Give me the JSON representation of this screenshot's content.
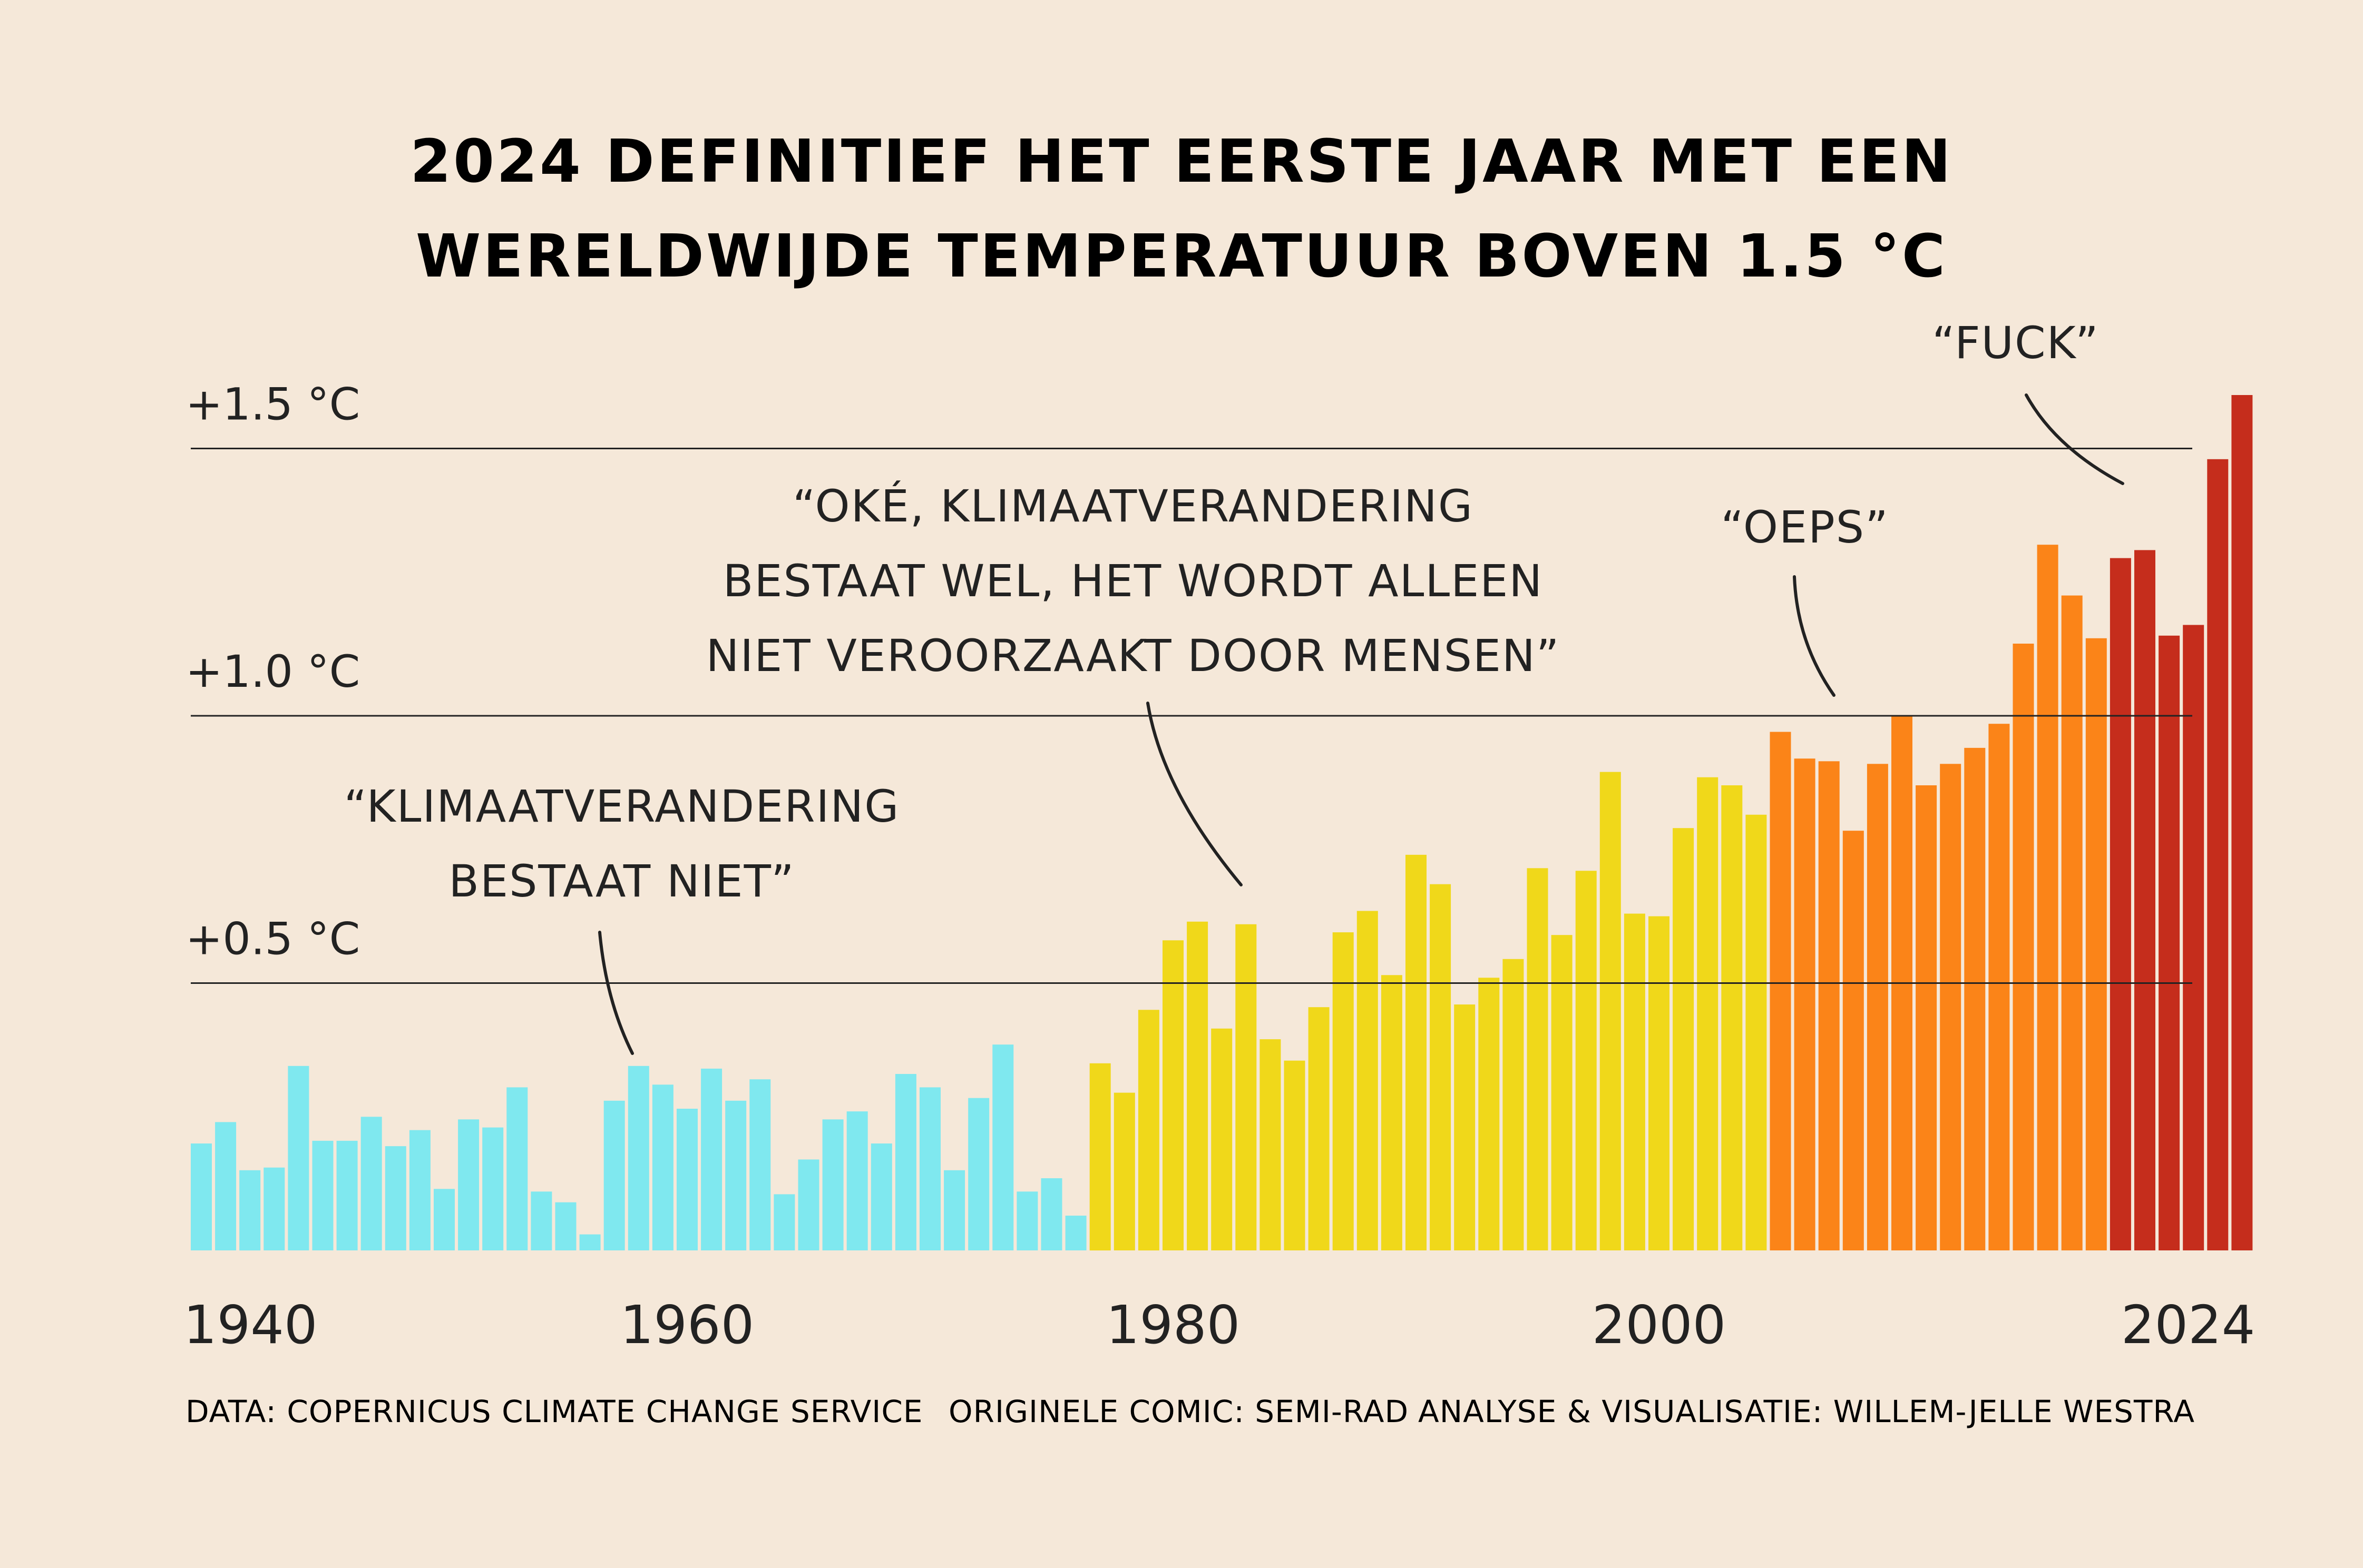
{
  "chart_data": {
    "type": "bar",
    "title_lines": [
      "2024 DEFINITIEF HET EERSTE JAAR MET EEN",
      "WERELDWIJDE TEMPERATUUR BOVEN 1.5 °C"
    ],
    "x": [
      1940,
      1941,
      1942,
      1943,
      1944,
      1945,
      1946,
      1947,
      1948,
      1949,
      1950,
      1951,
      1952,
      1953,
      1954,
      1955,
      1956,
      1957,
      1958,
      1959,
      1960,
      1961,
      1962,
      1963,
      1964,
      1965,
      1966,
      1967,
      1968,
      1969,
      1970,
      1971,
      1972,
      1973,
      1974,
      1975,
      1976,
      1977,
      1978,
      1979,
      1980,
      1981,
      1982,
      1983,
      1984,
      1985,
      1986,
      1987,
      1988,
      1989,
      1990,
      1991,
      1992,
      1993,
      1994,
      1995,
      1996,
      1997,
      1998,
      1999,
      2000,
      2001,
      2002,
      2003,
      2004,
      2005,
      2006,
      2007,
      2008,
      2009,
      2010,
      2011,
      2012,
      2013,
      2014,
      2015,
      2016,
      2017,
      2018,
      2019,
      2020,
      2021,
      2022,
      2023,
      2024
    ],
    "values": [
      0.2,
      0.24,
      0.15,
      0.155,
      0.345,
      0.205,
      0.205,
      0.25,
      0.195,
      0.225,
      0.115,
      0.245,
      0.23,
      0.305,
      0.11,
      0.09,
      0.03,
      0.28,
      0.345,
      0.31,
      0.265,
      0.34,
      0.28,
      0.32,
      0.105,
      0.17,
      0.245,
      0.26,
      0.2,
      0.33,
      0.305,
      0.15,
      0.285,
      0.385,
      0.11,
      0.135,
      0.065,
      0.35,
      0.295,
      0.45,
      0.58,
      0.615,
      0.415,
      0.61,
      0.395,
      0.355,
      0.455,
      0.595,
      0.635,
      0.515,
      0.74,
      0.685,
      0.46,
      0.51,
      0.545,
      0.715,
      0.59,
      0.71,
      0.895,
      0.63,
      0.625,
      0.79,
      0.885,
      0.87,
      0.815,
      0.97,
      0.92,
      0.915,
      0.785,
      0.91,
      1.0,
      0.87,
      0.91,
      0.94,
      0.985,
      1.135,
      1.32,
      1.225,
      1.145,
      1.295,
      1.31,
      1.15,
      1.17,
      1.48,
      1.6
    ],
    "series_colors": [
      {
        "from": 1940,
        "to": 1976,
        "color": "#7fe8ef"
      },
      {
        "from": 1977,
        "to": 2004,
        "color": "#f0d81a"
      },
      {
        "from": 2005,
        "to": 2018,
        "color": "#fb8418"
      },
      {
        "from": 2019,
        "to": 2024,
        "color": "#c52d1c"
      }
    ],
    "ylim": [
      0,
      1.6
    ],
    "gridlines": [
      0.5,
      1.0,
      1.5
    ],
    "ytick_labels": [
      "+0.5 °C",
      "+1.0 °C",
      "+1.5 °C"
    ],
    "xtick_values": [
      1940,
      1960,
      1980,
      2000,
      2024
    ],
    "xtick_labels": [
      "1940",
      "1960",
      "1980",
      "2000",
      "2024"
    ],
    "grid": true,
    "legend": "none",
    "annotations": [
      {
        "lines": [
          "“KLIMAATVERANDERING",
          "BESTAAT NIET”"
        ],
        "year": 1958,
        "value": 0.37
      },
      {
        "lines": [
          "“OKÉ, KLIMAATVERANDERING",
          "BESTAAT WEL, HET WORDT ALLEEN",
          "NIET VEROORZAAKT DOOR MENSEN”"
        ],
        "year": 1984,
        "value": 0.68
      },
      {
        "lines": [
          "“OEPS”"
        ],
        "year": 2009,
        "value": 1.03
      },
      {
        "lines": [
          "“FUCK”"
        ],
        "year": 2022,
        "value": 1.42
      }
    ]
  },
  "credits": {
    "data": "DATA: COPERNICUS CLIMATE CHANGE SERVICE",
    "comic": "ORIGINELE COMIC: SEMI-RAD",
    "analysis": "ANALYSE & VISUALISATIE: WILLEM-JELLE WESTRA"
  },
  "colors": {
    "background": "#f5e8d9",
    "text": "#222222",
    "gridline": "#222222"
  }
}
